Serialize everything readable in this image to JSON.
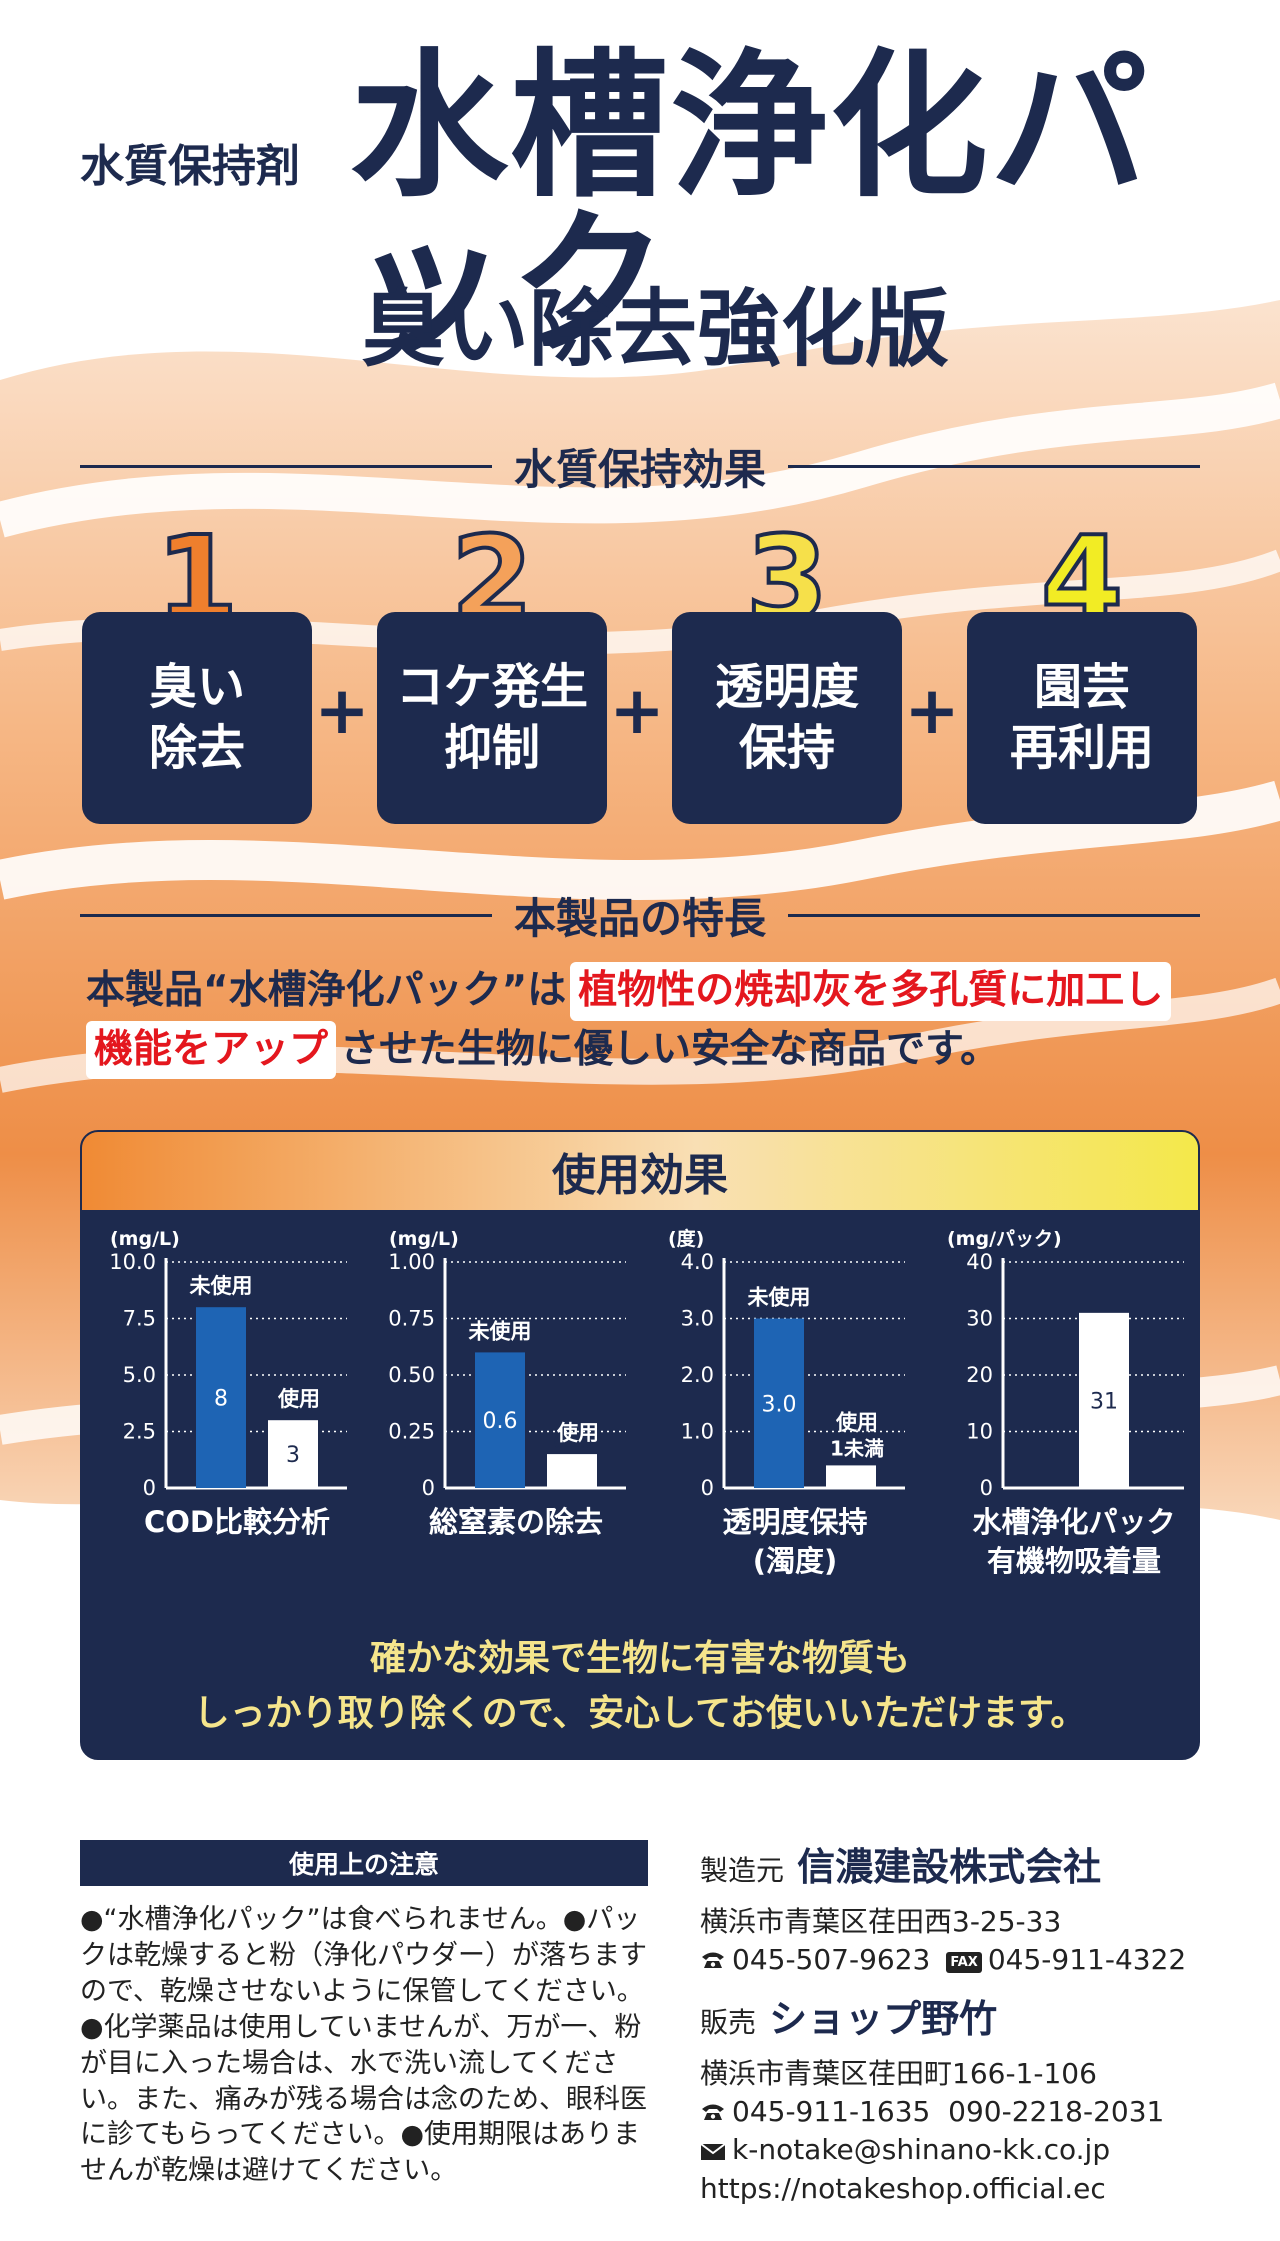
{
  "header": {
    "category": "水質保持剤",
    "title": "水槽浄化パック",
    "edition": "臭い除去強化版"
  },
  "effects_section": {
    "heading": "水質保持効果",
    "items": [
      {
        "number": "1",
        "label": "臭い\n除去",
        "color": "#ef7f2d"
      },
      {
        "number": "2",
        "label": "コケ発生\n抑制",
        "color": "#f4a15a"
      },
      {
        "number": "3",
        "label": "透明度\n保持",
        "color": "#f6e04a"
      },
      {
        "number": "4",
        "label": "園芸\n再利用",
        "color": "#f2ec24"
      }
    ],
    "plus": "+"
  },
  "features_section": {
    "heading": "本製品の特長",
    "text_1": "本製品“水槽浄化パック”は",
    "highlight_1": "植物性の焼却灰を多孔質に加工し",
    "highlight_2": "機能をアップ",
    "text_2": "させた生物に優しい安全な商品です。"
  },
  "usage_panel": {
    "heading": "使用効果",
    "message_line1": "確かな効果で生物に有害な物質も",
    "message_line2": "しっかり取り除くので、安心してお使いいただけます。"
  },
  "chart_data": [
    {
      "type": "bar",
      "title": "COD比較分析",
      "unit": "(mg/L)",
      "ylim": [
        0,
        10
      ],
      "yticks": [
        "0",
        "2.5",
        "5.0",
        "7.5",
        "10.0"
      ],
      "tick_values": [
        0,
        2.5,
        5,
        7.5,
        10
      ],
      "categories": [
        "未使用",
        "使用"
      ],
      "values": [
        8,
        3
      ],
      "value_labels": [
        "8",
        "3"
      ],
      "colors": [
        "#1e64b4",
        "#ffffff"
      ]
    },
    {
      "type": "bar",
      "title": "総窒素の除去",
      "unit": "(mg/L)",
      "ylim": [
        0,
        1
      ],
      "yticks": [
        "0",
        "0.25",
        "0.50",
        "0.75",
        "1.00"
      ],
      "tick_values": [
        0,
        0.25,
        0.5,
        0.75,
        1
      ],
      "categories": [
        "未使用",
        "使用"
      ],
      "values": [
        0.6,
        0.15
      ],
      "value_labels": [
        "0.6",
        "0.15"
      ],
      "colors": [
        "#1e64b4",
        "#ffffff"
      ]
    },
    {
      "type": "bar",
      "title": "透明度保持",
      "title_line2": "(濁度)",
      "unit": "(度)",
      "ylim": [
        0,
        4
      ],
      "yticks": [
        "0",
        "1.0",
        "2.0",
        "3.0",
        "4.0"
      ],
      "tick_values": [
        0,
        1,
        2,
        3,
        4
      ],
      "categories": [
        "未使用",
        "使用"
      ],
      "category_notes": [
        "",
        "1未満"
      ],
      "values": [
        3.0,
        0.4
      ],
      "value_labels": [
        "3.0",
        ""
      ],
      "colors": [
        "#1e64b4",
        "#ffffff"
      ]
    },
    {
      "type": "bar",
      "title": "水槽浄化パック",
      "title_line2": "有機物吸着量",
      "unit": "(mg/パック)",
      "ylim": [
        0,
        40
      ],
      "yticks": [
        "0",
        "10",
        "20",
        "30",
        "40"
      ],
      "tick_values": [
        0,
        10,
        20,
        30,
        40
      ],
      "categories": [
        ""
      ],
      "values": [
        31
      ],
      "value_labels": [
        "31"
      ],
      "colors": [
        "#ffffff"
      ]
    }
  ],
  "notice": {
    "heading": "使用上の注意",
    "body": "●“水槽浄化パック”は食べられません。●パックは乾燥すると粉（浄化パウダー）が落ちますので、乾燥させないように保管してください。●化学薬品は使用していませんが、万が一、粉が目に入った場合は、水で洗い流してください。また、痛みが残る場合は念のため、眼科医に診てもらってください。●使用期限はありませんが乾燥は避けてください。"
  },
  "manufacturer": {
    "role": "製造元",
    "name": "信濃建設株式会社",
    "address": "横浜市青葉区荏田西3-25-33",
    "tel": "045-507-9623",
    "fax_label": "FAX",
    "fax": "045-911-4322"
  },
  "seller": {
    "role": "販売",
    "name": "ショップ野竹",
    "address": "横浜市青葉区荏田町166-1-106",
    "tel": "045-911-1635",
    "mobile": "090-2218-2031",
    "email": "k-notake@shinano-kk.co.jp",
    "url": "https://notakeshop.official.ec"
  }
}
